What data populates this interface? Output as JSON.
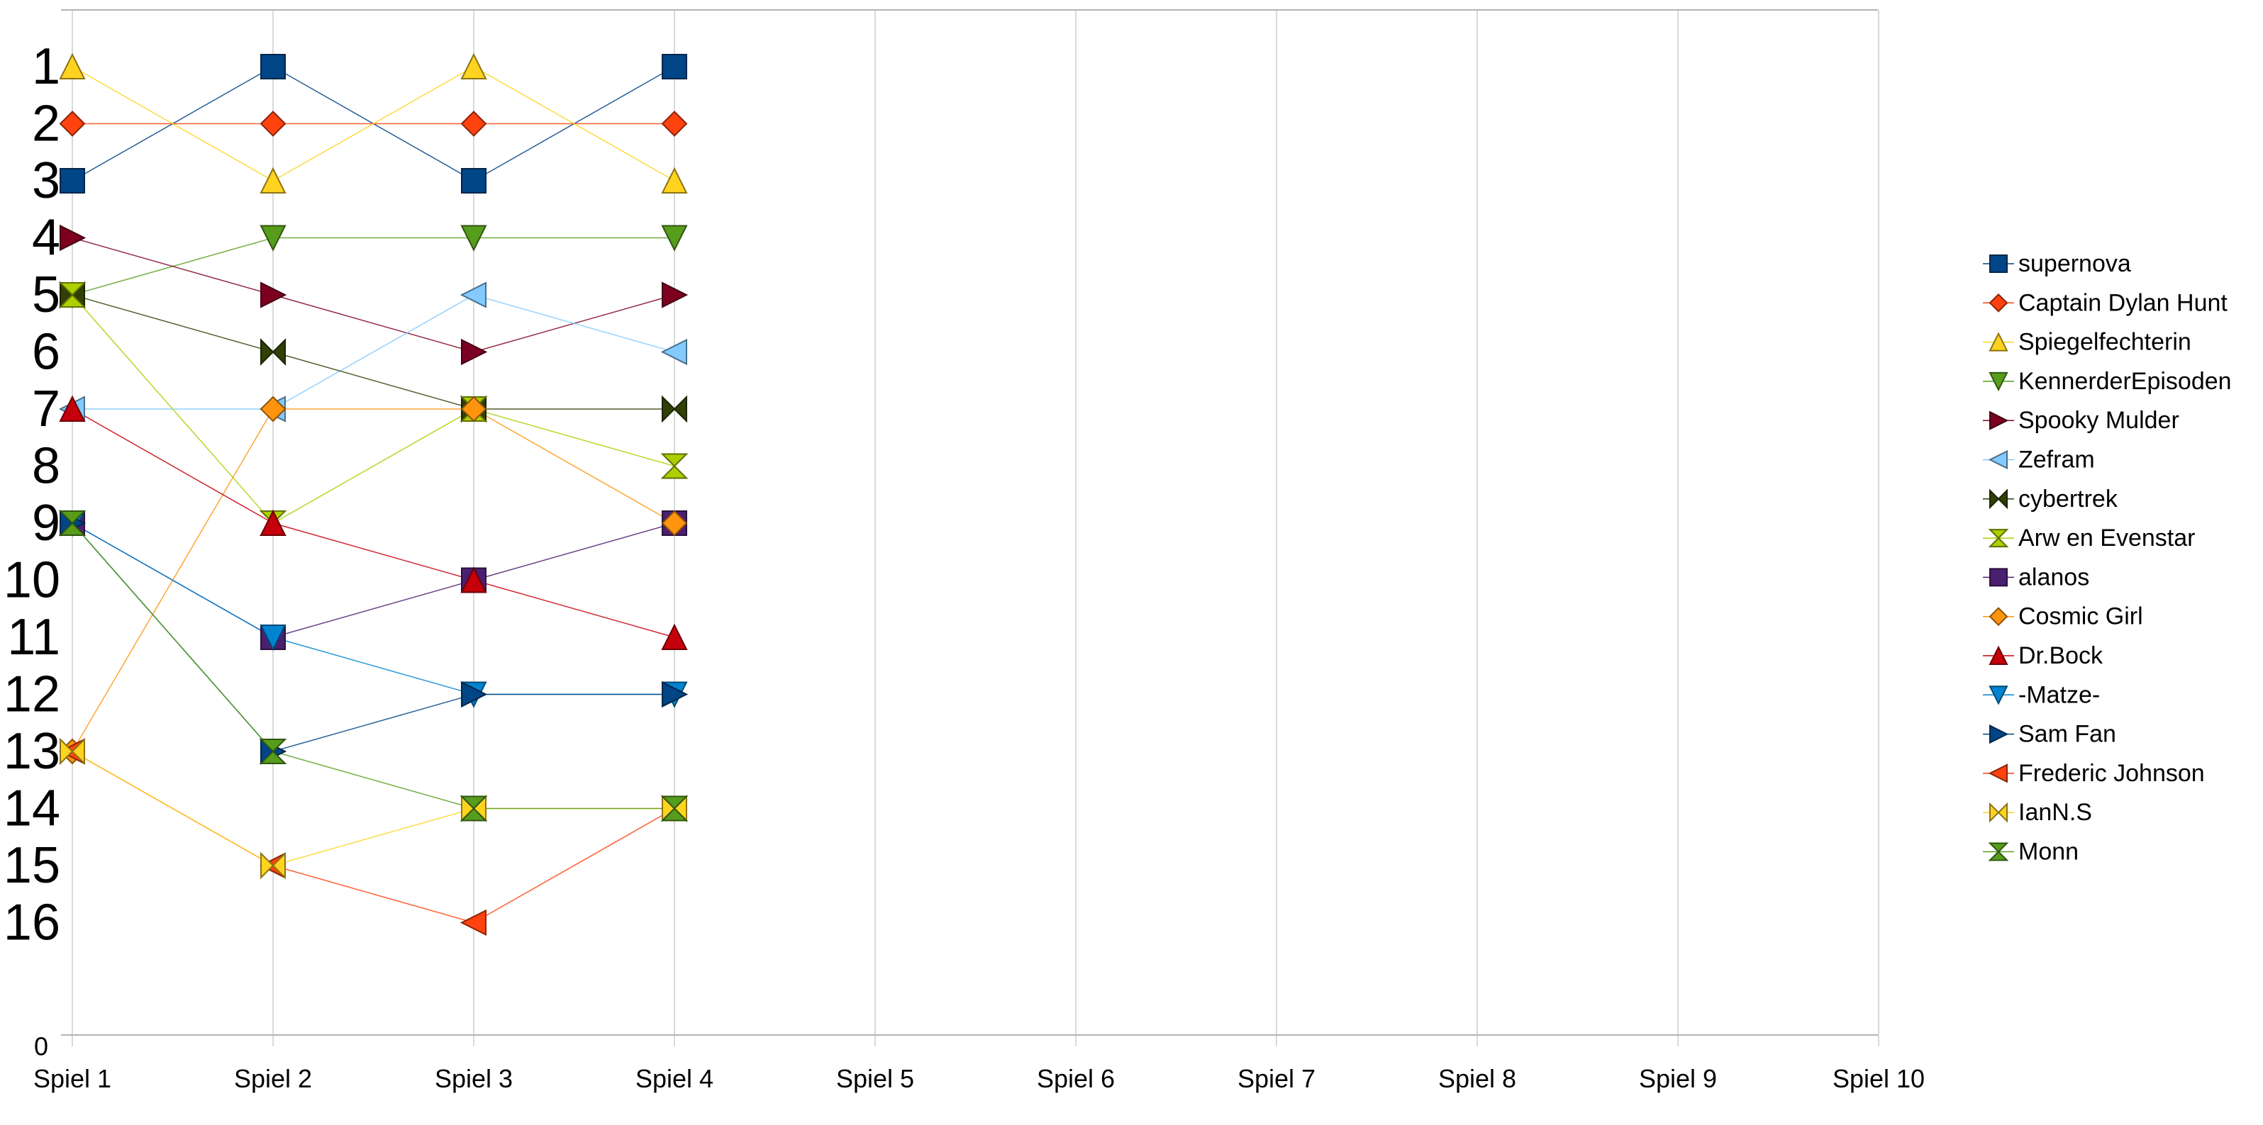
{
  "chart_data": {
    "type": "line",
    "title": "",
    "xlabel": "",
    "ylabel": "",
    "x_categories": [
      "Spiel 1",
      "Spiel 2",
      "Spiel 3",
      "Spiel 4",
      "Spiel 5",
      "Spiel 6",
      "Spiel 7",
      "Spiel 8",
      "Spiel 9",
      "Spiel 10"
    ],
    "y_tick_labels": [
      "1",
      "2",
      "3",
      "4",
      "5",
      "6",
      "7",
      "8",
      "9",
      "10",
      "11",
      "12",
      "13",
      "14",
      "15",
      "16"
    ],
    "y_zero_label": "0",
    "y_axis": "inverted rank, 1 at top",
    "ylim": [
      0,
      17
    ],
    "grid": "vertical gridlines",
    "legend_position": "right",
    "series": [
      {
        "name": "supernova",
        "color": "#004586",
        "marker": "square",
        "values": [
          3,
          1,
          3,
          1
        ]
      },
      {
        "name": "Captain Dylan Hunt",
        "color": "#ff420e",
        "marker": "diamond",
        "values": [
          2,
          2,
          2,
          2
        ]
      },
      {
        "name": "Spiegelfechterin",
        "color": "#ffd320",
        "marker": "triangle-up",
        "values": [
          1,
          3,
          1,
          3
        ]
      },
      {
        "name": "KennerderEpisoden",
        "color": "#579d1c",
        "marker": "triangle-down",
        "values": [
          5,
          4,
          4,
          4
        ]
      },
      {
        "name": "Spooky Mulder",
        "color": "#7e0021",
        "marker": "triangle-right",
        "values": [
          4,
          5,
          6,
          5
        ]
      },
      {
        "name": "Zefram",
        "color": "#83caff",
        "marker": "triangle-left",
        "values": [
          7,
          7,
          5,
          6
        ]
      },
      {
        "name": "cybertrek",
        "color": "#314004",
        "marker": "bowtie",
        "values": [
          5,
          6,
          7,
          7
        ]
      },
      {
        "name": "Arw en Evenstar",
        "color": "#aecf00",
        "marker": "hourglass",
        "values": [
          5,
          9,
          7,
          8
        ]
      },
      {
        "name": "alanos",
        "color": "#4b1f6f",
        "marker": "square",
        "values": [
          9,
          11,
          10,
          9
        ]
      },
      {
        "name": "Cosmic Girl",
        "color": "#ff950e",
        "marker": "diamond",
        "values": [
          13,
          7,
          7,
          9
        ]
      },
      {
        "name": "Dr.Bock",
        "color": "#c5000b",
        "marker": "triangle-up",
        "values": [
          7,
          9,
          10,
          11
        ]
      },
      {
        "name": "-Matze-",
        "color": "#0084d1",
        "marker": "triangle-down",
        "values": [
          9,
          11,
          12,
          12
        ]
      },
      {
        "name": "Sam Fan",
        "color": "#004586",
        "marker": "triangle-right",
        "values": [
          9,
          13,
          12,
          12
        ]
      },
      {
        "name": "Frederic Johnson",
        "color": "#ff420e",
        "marker": "triangle-left",
        "values": [
          13,
          15,
          16,
          14
        ]
      },
      {
        "name": "IanN.S",
        "color": "#ffd320",
        "marker": "bowtie",
        "values": [
          13,
          15,
          14,
          14
        ]
      },
      {
        "name": "Monn",
        "color": "#579d1c",
        "marker": "hourglass",
        "values": [
          9,
          13,
          14,
          14
        ]
      }
    ]
  }
}
